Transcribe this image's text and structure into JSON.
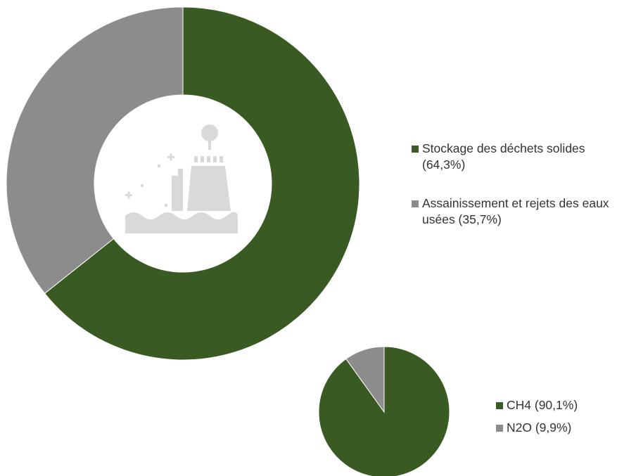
{
  "chart_data": [
    {
      "type": "donut",
      "categories": [
        "Stockage des déchets solides (64,3%)",
        "Assainissement et rejets des eaux usées (35,7%)"
      ],
      "values": [
        64.3,
        35.7
      ],
      "colors": [
        "#3a5a24",
        "#8c8c8c"
      ],
      "center_icon": "waste-treatment-icon",
      "legend_position": "right"
    },
    {
      "type": "pie",
      "categories": [
        "CH4 (90,1%)",
        "N2O (9,9%)"
      ],
      "values": [
        90.1,
        9.9
      ],
      "colors": [
        "#3a5a24",
        "#8c8c8c"
      ],
      "legend_position": "right"
    }
  ]
}
